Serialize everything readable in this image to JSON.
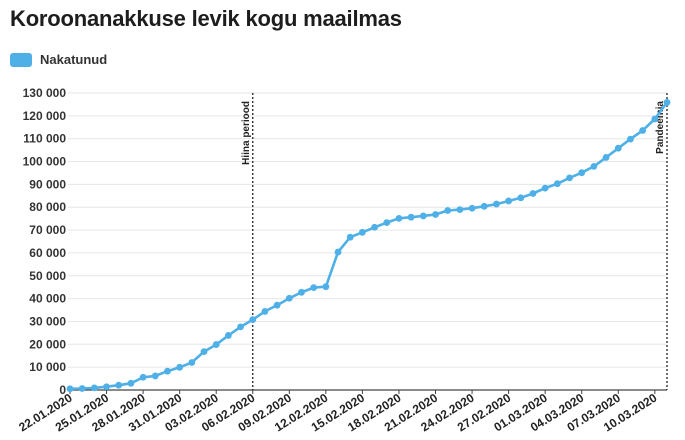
{
  "title": "Koroonanakkuse levik kogu maailmas",
  "legend": {
    "label": "Nakatunud",
    "color": "#4fb0e8"
  },
  "chart_data": {
    "type": "line",
    "title": "Koroonanakkuse levik kogu maailmas",
    "xlabel": "",
    "ylabel": "",
    "ylim": [
      0,
      130000
    ],
    "y_ticks": [
      0,
      10000,
      20000,
      30000,
      40000,
      50000,
      60000,
      70000,
      80000,
      90000,
      100000,
      110000,
      120000,
      130000
    ],
    "y_tick_labels": [
      "0",
      "10 000",
      "20 000",
      "30 000",
      "40 000",
      "50 000",
      "60 000",
      "70 000",
      "80 000",
      "90 000",
      "100 000",
      "110 000",
      "120 000",
      "130 000"
    ],
    "x_tick_labels": [
      "22.01.2020",
      "25.01.2020",
      "28.01.2020",
      "31.01.2020",
      "03.02.2020",
      "06.02.2020",
      "09.02.2020",
      "12.02.2020",
      "15.02.2020",
      "18.02.2020",
      "21.02.2020",
      "24.02.2020",
      "27.02.2020",
      "01.03.2020",
      "04.03.2020",
      "07.03.2020",
      "10.03.2020"
    ],
    "grid": true,
    "legend_position": "top-left",
    "series": [
      {
        "name": "Nakatunud",
        "color": "#4fb0e8",
        "x": [
          "22.01.2020",
          "23.01.2020",
          "24.01.2020",
          "25.01.2020",
          "26.01.2020",
          "27.01.2020",
          "28.01.2020",
          "29.01.2020",
          "30.01.2020",
          "31.01.2020",
          "01.02.2020",
          "02.02.2020",
          "03.02.2020",
          "04.02.2020",
          "05.02.2020",
          "06.02.2020",
          "07.02.2020",
          "08.02.2020",
          "09.02.2020",
          "10.02.2020",
          "11.02.2020",
          "12.02.2020",
          "13.02.2020",
          "14.02.2020",
          "15.02.2020",
          "16.02.2020",
          "17.02.2020",
          "18.02.2020",
          "19.02.2020",
          "20.02.2020",
          "21.02.2020",
          "22.02.2020",
          "23.02.2020",
          "24.02.2020",
          "25.02.2020",
          "26.02.2020",
          "27.02.2020",
          "28.02.2020",
          "29.02.2020",
          "01.03.2020",
          "02.03.2020",
          "03.03.2020",
          "04.03.2020",
          "05.03.2020",
          "06.03.2020",
          "07.03.2020",
          "08.03.2020",
          "09.03.2020",
          "10.03.2020",
          "11.03.2020"
        ],
        "values": [
          555,
          654,
          941,
          1434,
          2118,
          2927,
          5578,
          6166,
          8234,
          9927,
          12038,
          16787,
          19881,
          23892,
          27635,
          30817,
          34391,
          37120,
          40150,
          42762,
          44802,
          45221,
          60368,
          66885,
          69030,
          71224,
          73258,
          75136,
          75639,
          76197,
          76819,
          78572,
          78958,
          79561,
          80406,
          81388,
          82746,
          84112,
          86011,
          88369,
          90306,
          92840,
          95120,
          97886,
          101801,
          105847,
          109821,
          113590,
          118620,
          125875
        ]
      }
    ],
    "annotations": [
      {
        "label": "Hiina periood",
        "x": "06.02.2020",
        "style": "dotted vertical line"
      },
      {
        "label": "Pandeemia",
        "x": "11.03.2020",
        "style": "dotted vertical line"
      }
    ]
  }
}
